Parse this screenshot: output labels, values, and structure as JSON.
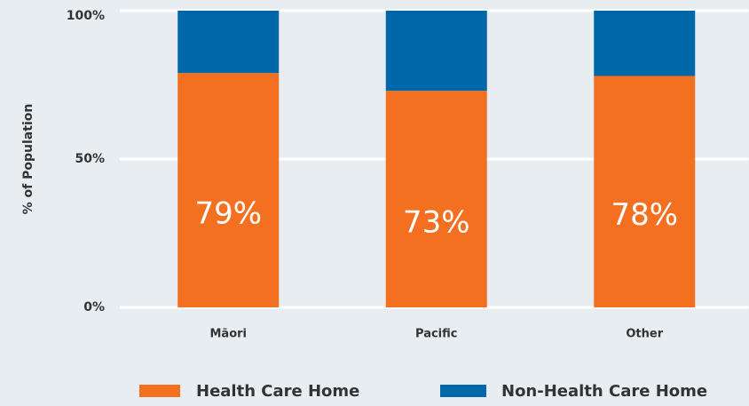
{
  "chart_data": {
    "type": "stacked_bar",
    "y_axis_label": "% of Population",
    "categories": [
      "Māori",
      "Pacific",
      "Other"
    ],
    "series": [
      {
        "name": "Health Care Home",
        "color": "#f37021",
        "values": [
          79,
          73,
          78
        ],
        "value_labels": [
          "79%",
          "73%",
          "78%"
        ]
      },
      {
        "name": "Non-Health Care Home",
        "color": "#0067a8",
        "values": [
          21,
          27,
          22
        ]
      }
    ],
    "ylim": [
      0,
      100
    ],
    "yticks": [
      {
        "value": 0,
        "label": "0%"
      },
      {
        "value": 50,
        "label": "50%"
      },
      {
        "value": 100,
        "label": "100%"
      }
    ],
    "grid": true,
    "legend": "bottom"
  }
}
